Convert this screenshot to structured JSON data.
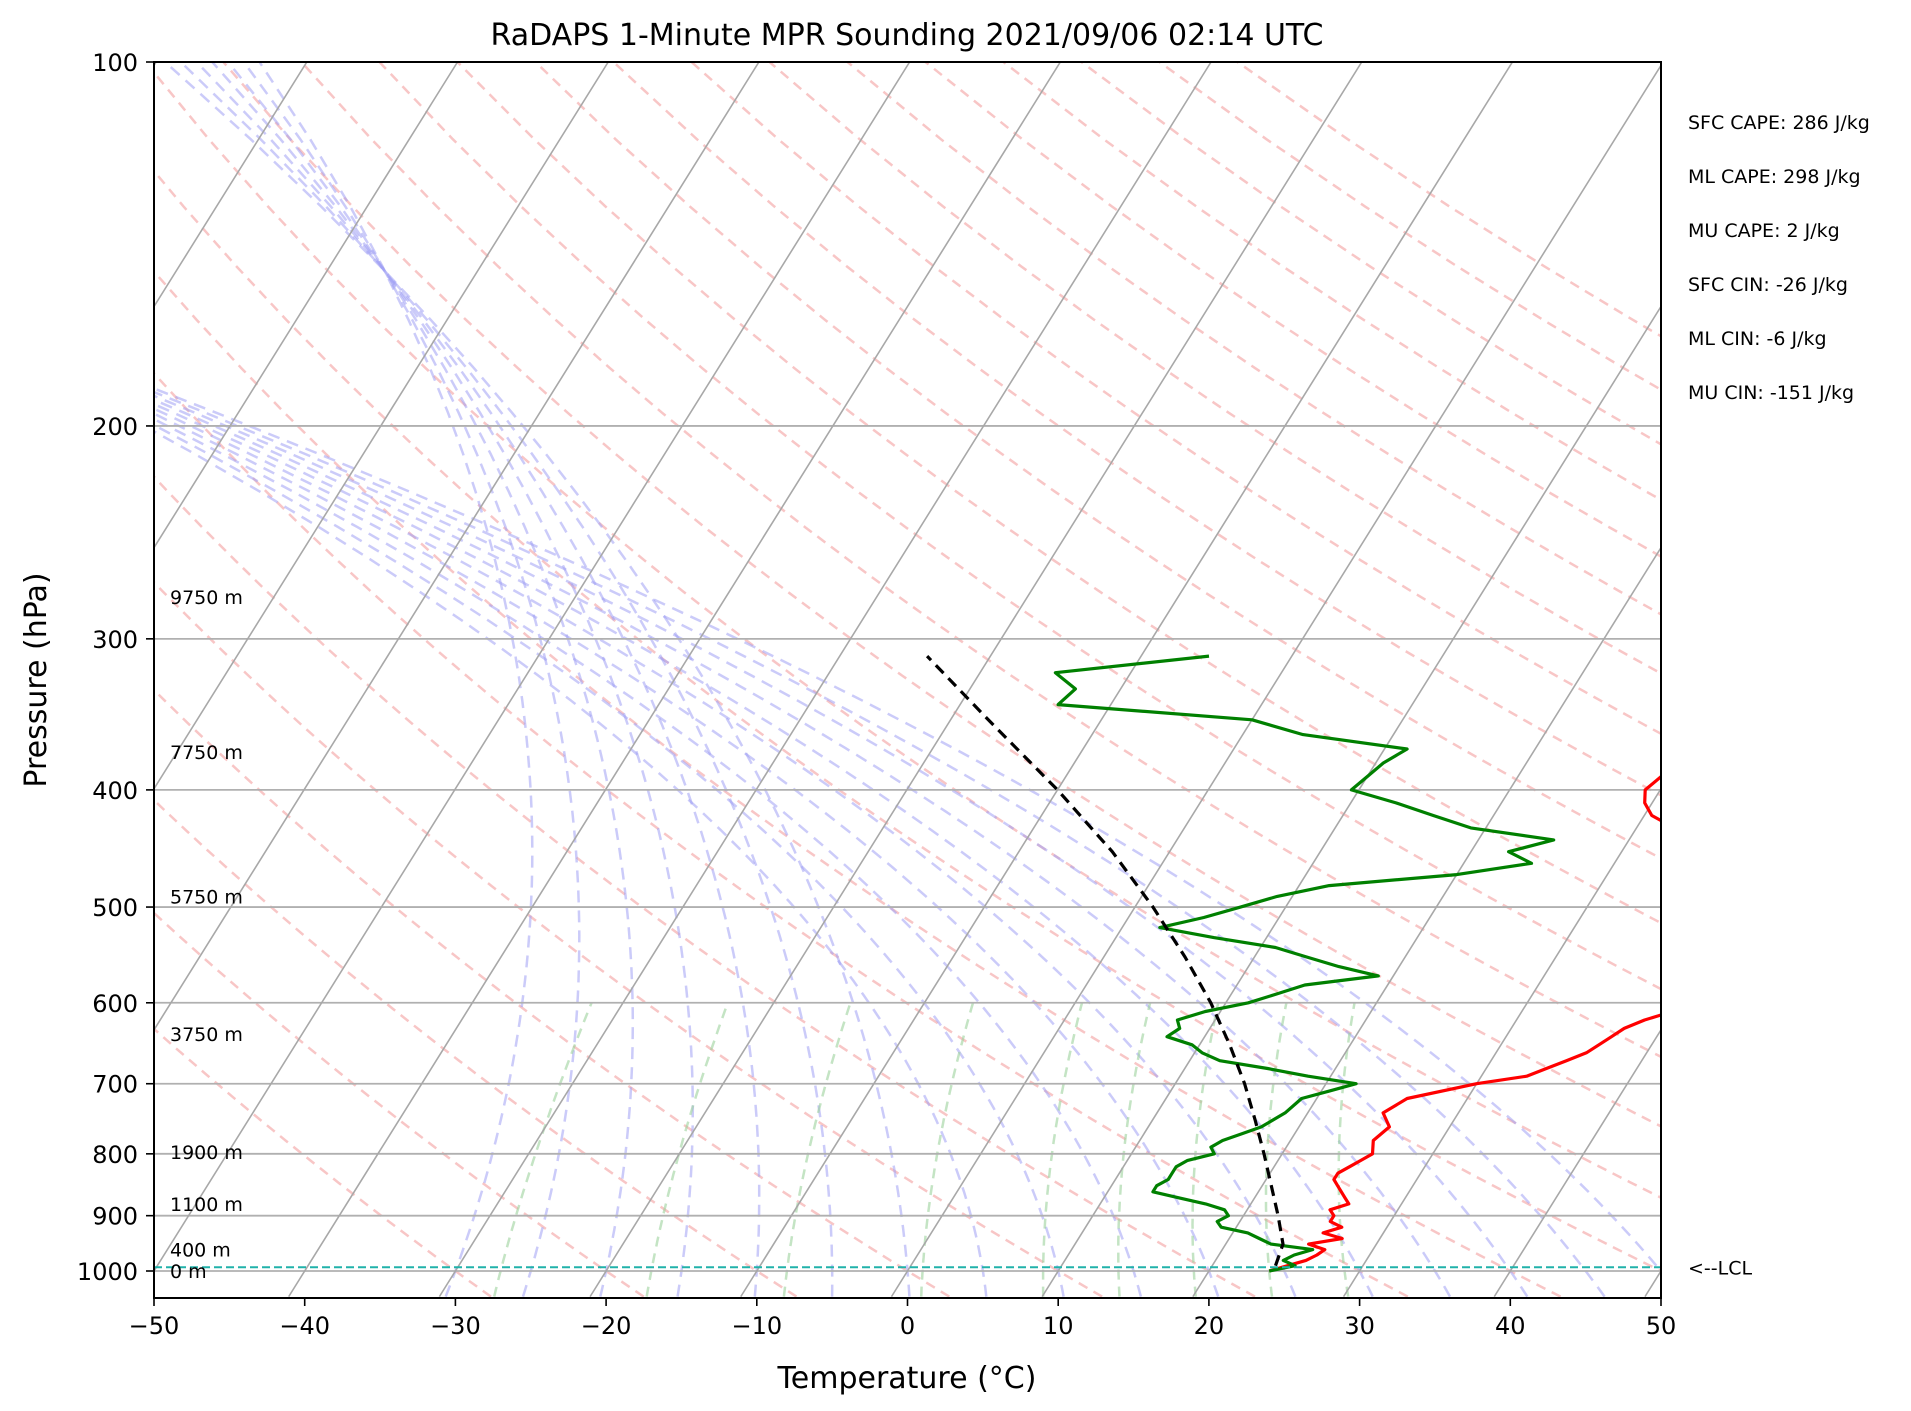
{
  "chart_data": {
    "type": "skew-t",
    "title": "RaDAPS 1-Minute MPR Sounding 2021/09/06 02:14 UTC",
    "xlabel": "Temperature (°C)",
    "ylabel": "Pressure (hPa)",
    "xlim": [
      -50,
      50
    ],
    "ylim": [
      1050,
      100
    ],
    "x_ticks": [
      -50,
      -40,
      -30,
      -20,
      -10,
      0,
      10,
      20,
      30,
      40,
      50
    ],
    "x_tick_labels": [
      "−50",
      "−40",
      "−30",
      "−20",
      "−10",
      "0",
      "10",
      "20",
      "30",
      "40",
      "50"
    ],
    "y_ticks": [
      100,
      200,
      300,
      400,
      500,
      600,
      700,
      800,
      900,
      1000
    ],
    "y_tick_labels": [
      "100",
      "200",
      "300",
      "400",
      "500",
      "600",
      "700",
      "800",
      "900",
      "1000"
    ],
    "y_scale": "log",
    "grid": true,
    "stats": [
      "SFC CAPE: 286 J/kg",
      "ML CAPE: 298 J/kg",
      "MU CAPE: 2 J/kg",
      "SFC CIN: -26 J/kg",
      "ML CIN: -6 J/kg",
      "MU CIN: -151 J/kg"
    ],
    "height_labels": [
      {
        "p": 277,
        "label": "9750 m"
      },
      {
        "p": 372,
        "label": "7750 m"
      },
      {
        "p": 490,
        "label": "5750 m"
      },
      {
        "p": 637,
        "label": "3750 m"
      },
      {
        "p": 797,
        "label": "1900 m"
      },
      {
        "p": 880,
        "label": "1100 m"
      },
      {
        "p": 960,
        "label": "400 m"
      },
      {
        "p": 1000,
        "label": "0 m"
      }
    ],
    "lcl": {
      "p": 993,
      "label": "<--LCL"
    },
    "series": [
      {
        "color": "#ff0000",
        "points": [
          [
            1000,
            24.0
          ],
          [
            990,
            25.0
          ],
          [
            980,
            26.0
          ],
          [
            970,
            26.5
          ],
          [
            960,
            26.8
          ],
          [
            950,
            25.5
          ],
          [
            940,
            27.5
          ],
          [
            930,
            26.0
          ],
          [
            920,
            27.0
          ],
          [
            910,
            26.0
          ],
          [
            900,
            26.0
          ],
          [
            890,
            25.5
          ],
          [
            880,
            26.5
          ],
          [
            870,
            26.0
          ],
          [
            850,
            25.0
          ],
          [
            840,
            24.5
          ],
          [
            830,
            24.5
          ],
          [
            820,
            25.0
          ],
          [
            810,
            25.5
          ],
          [
            800,
            26.0
          ],
          [
            780,
            25.5
          ],
          [
            760,
            26.0
          ],
          [
            740,
            25.0
          ],
          [
            720,
            26.0
          ],
          [
            700,
            30.0
          ],
          [
            690,
            33.0
          ],
          [
            680,
            34.0
          ],
          [
            670,
            35.0
          ],
          [
            660,
            36.0
          ],
          [
            650,
            36.5
          ],
          [
            640,
            37.0
          ],
          [
            630,
            37.5
          ],
          [
            620,
            38.5
          ],
          [
            610,
            40.0
          ],
          [
            600,
            40.0
          ],
          [
            590,
            39.0
          ],
          [
            580,
            39.5
          ],
          [
            570,
            40.5
          ],
          [
            560,
            41.5
          ],
          [
            550,
            41.5
          ],
          [
            540,
            40.5
          ],
          [
            530,
            38.0
          ],
          [
            520,
            37.0
          ],
          [
            510,
            38.0
          ],
          [
            500,
            37.5
          ],
          [
            490,
            37.5
          ],
          [
            480,
            38.0
          ],
          [
            470,
            38.0
          ],
          [
            460,
            37.5
          ],
          [
            450,
            36.5
          ],
          [
            440,
            34.5
          ],
          [
            430,
            32.5
          ],
          [
            420,
            30.5
          ],
          [
            410,
            29.5
          ],
          [
            400,
            29.0
          ],
          [
            390,
            29.5
          ],
          [
            380,
            29.5
          ],
          [
            370,
            32.0
          ],
          [
            360,
            33.0
          ],
          [
            350,
            34.0
          ],
          [
            340,
            35.5
          ],
          [
            330,
            34.5
          ],
          [
            320,
            35.5
          ],
          [
            310,
            36.5
          ]
        ]
      },
      {
        "color": "#008000",
        "points": [
          [
            1000,
            24.0
          ],
          [
            990,
            25.5
          ],
          [
            980,
            24.5
          ],
          [
            970,
            25.0
          ],
          [
            960,
            26.0
          ],
          [
            955,
            24.5
          ],
          [
            950,
            23.0
          ],
          [
            940,
            22.0
          ],
          [
            930,
            21.0
          ],
          [
            920,
            19.0
          ],
          [
            910,
            18.5
          ],
          [
            900,
            19.0
          ],
          [
            890,
            18.5
          ],
          [
            880,
            17.0
          ],
          [
            870,
            15.0
          ],
          [
            860,
            13.0
          ],
          [
            850,
            13.0
          ],
          [
            840,
            13.5
          ],
          [
            830,
            13.5
          ],
          [
            820,
            13.5
          ],
          [
            810,
            14.0
          ],
          [
            800,
            15.5
          ],
          [
            790,
            15.0
          ],
          [
            780,
            15.5
          ],
          [
            770,
            16.5
          ],
          [
            760,
            17.5
          ],
          [
            740,
            18.5
          ],
          [
            720,
            19.0
          ],
          [
            710,
            20.5
          ],
          [
            700,
            22.0
          ],
          [
            690,
            18.5
          ],
          [
            680,
            15.5
          ],
          [
            670,
            12.0
          ],
          [
            660,
            10.5
          ],
          [
            650,
            9.5
          ],
          [
            640,
            7.5
          ],
          [
            630,
            8.0
          ],
          [
            620,
            7.5
          ],
          [
            610,
            9.0
          ],
          [
            600,
            11.5
          ],
          [
            590,
            13.0
          ],
          [
            580,
            14.5
          ],
          [
            570,
            19.0
          ],
          [
            560,
            16.0
          ],
          [
            550,
            13.5
          ],
          [
            540,
            11.0
          ],
          [
            530,
            6.5
          ],
          [
            520,
            2.5
          ],
          [
            510,
            5.0
          ],
          [
            500,
            7.0
          ],
          [
            490,
            9.0
          ],
          [
            480,
            12.0
          ],
          [
            470,
            20.0
          ],
          [
            460,
            24.5
          ],
          [
            450,
            22.5
          ],
          [
            440,
            25.0
          ],
          [
            430,
            19.0
          ],
          [
            420,
            16.0
          ],
          [
            410,
            13.0
          ],
          [
            400,
            9.5
          ],
          [
            390,
            10.0
          ],
          [
            380,
            10.5
          ],
          [
            370,
            11.5
          ],
          [
            360,
            4.0
          ],
          [
            350,
            0.0
          ],
          [
            340,
            -13.5
          ],
          [
            330,
            -13.0
          ],
          [
            320,
            -15.0
          ],
          [
            310,
            -5.5
          ]
        ]
      },
      {
        "color": "#000000",
        "dashed": true,
        "points": [
          [
            990,
            24.2
          ],
          [
            950,
            23.8
          ],
          [
            900,
            22.3
          ],
          [
            850,
            20.6
          ],
          [
            800,
            18.8
          ],
          [
            750,
            16.8
          ],
          [
            700,
            14.6
          ],
          [
            650,
            12.0
          ],
          [
            600,
            9.0
          ],
          [
            550,
            5.4
          ],
          [
            500,
            1.2
          ],
          [
            450,
            -3.8
          ],
          [
            400,
            -10.0
          ],
          [
            350,
            -17.5
          ],
          [
            310,
            -24.2
          ]
        ]
      }
    ]
  }
}
